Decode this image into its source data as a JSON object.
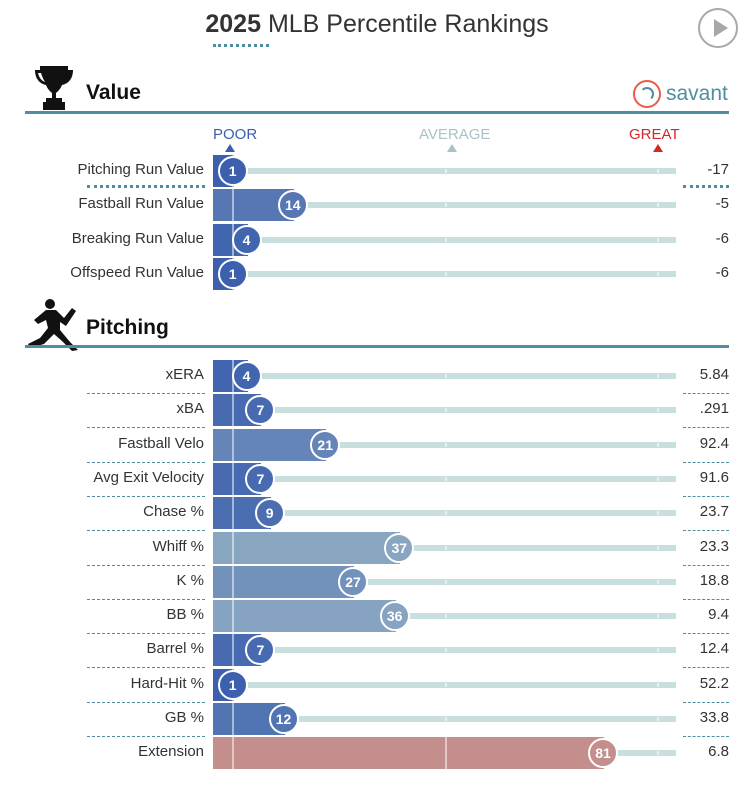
{
  "title": {
    "year": "2025",
    "rest": "MLB Percentile Rankings"
  },
  "brand": {
    "name": "savant"
  },
  "scale": {
    "poor": "POOR",
    "average": "AVERAGE",
    "great": "GREAT"
  },
  "colors": {
    "teal": "#4f8ea0",
    "poor": "#3b5fad",
    "great": "#d62728",
    "average": "#a7c2c9",
    "track": "#c8dfe0"
  },
  "sections": [
    {
      "title": "Value",
      "icon": "trophy-icon",
      "metrics": [
        {
          "label": "Pitching Run Value",
          "percentile": 1,
          "value": "-17"
        },
        {
          "label": "Fastball Run Value",
          "percentile": 14,
          "value": "-5"
        },
        {
          "label": "Breaking Run Value",
          "percentile": 4,
          "value": "-6"
        },
        {
          "label": "Offspeed Run Value",
          "percentile": 1,
          "value": "-6"
        }
      ]
    },
    {
      "title": "Pitching",
      "icon": "pitcher-icon",
      "metrics": [
        {
          "label": "xERA",
          "percentile": 4,
          "value": "5.84"
        },
        {
          "label": "xBA",
          "percentile": 7,
          "value": ".291"
        },
        {
          "label": "Fastball Velo",
          "percentile": 21,
          "value": "92.4"
        },
        {
          "label": "Avg Exit Velocity",
          "percentile": 7,
          "value": "91.6"
        },
        {
          "label": "Chase %",
          "percentile": 9,
          "value": "23.7"
        },
        {
          "label": "Whiff %",
          "percentile": 37,
          "value": "23.3"
        },
        {
          "label": "K %",
          "percentile": 27,
          "value": "18.8"
        },
        {
          "label": "BB %",
          "percentile": 36,
          "value": "9.4"
        },
        {
          "label": "Barrel %",
          "percentile": 7,
          "value": "12.4"
        },
        {
          "label": "Hard-Hit %",
          "percentile": 1,
          "value": "52.2"
        },
        {
          "label": "GB %",
          "percentile": 12,
          "value": "33.8"
        },
        {
          "label": "Extension",
          "percentile": 81,
          "value": "6.8"
        }
      ]
    }
  ]
}
